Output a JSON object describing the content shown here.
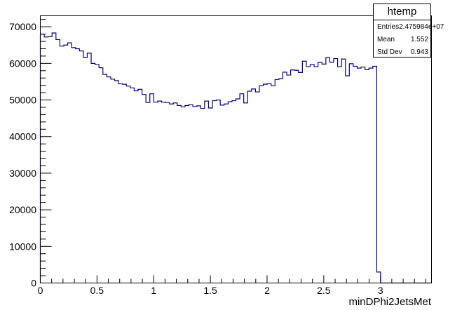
{
  "stats": {
    "title": "htemp",
    "rows": [
      {
        "label": "Entries",
        "value": "2.475984e+07"
      },
      {
        "label": "Mean",
        "value": "1.552"
      },
      {
        "label": "Std Dev",
        "value": "0.943"
      }
    ]
  },
  "chart_data": {
    "type": "bar",
    "histogram": "step",
    "title": "",
    "xlabel": "minDPhi2JetsMet",
    "ylabel": "",
    "xlim": [
      0,
      3.45
    ],
    "ylim": [
      0,
      73000
    ],
    "bin_width": 0.0345,
    "x_ticks": [
      "0",
      "0.5",
      "1",
      "1.5",
      "2",
      "2.5",
      "3"
    ],
    "y_ticks": [
      "0",
      "10000",
      "20000",
      "30000",
      "40000",
      "50000",
      "60000",
      "70000"
    ],
    "line_color": "#000080",
    "values": [
      68000,
      67200,
      67300,
      68300,
      66500,
      64700,
      65000,
      65600,
      64300,
      64000,
      63400,
      61600,
      62800,
      60000,
      59700,
      58800,
      57000,
      56300,
      55700,
      55300,
      54400,
      54300,
      53800,
      53300,
      52500,
      52900,
      51500,
      49300,
      51700,
      49400,
      49700,
      49400,
      49300,
      48900,
      49200,
      48500,
      48100,
      48500,
      48700,
      48200,
      48400,
      47700,
      49700,
      47800,
      49800,
      50000,
      48600,
      48900,
      49500,
      49800,
      50300,
      51700,
      49200,
      52400,
      53000,
      52200,
      53900,
      54300,
      54500,
      53900,
      55600,
      55800,
      57600,
      56800,
      58200,
      58100,
      57500,
      60600,
      59100,
      59700,
      59100,
      60300,
      59800,
      61600,
      60300,
      61300,
      59100,
      61200,
      56600,
      59900,
      59200,
      58700,
      59000,
      58300,
      58700,
      59200,
      3000,
      0,
      0,
      0,
      0,
      0,
      0,
      0,
      0,
      0,
      0,
      0,
      0,
      0
    ]
  }
}
